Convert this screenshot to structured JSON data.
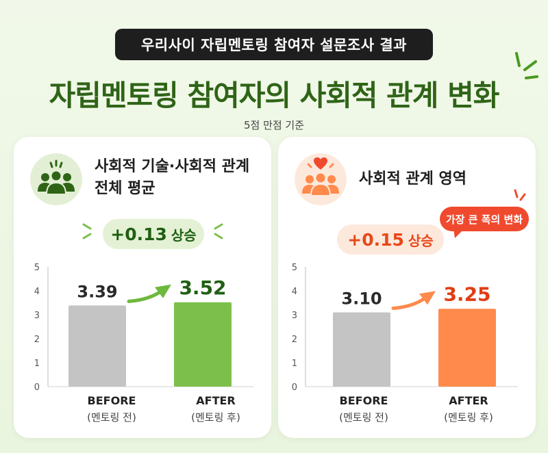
{
  "header": {
    "pill": "우리사이 자립멘토링 참여자 설문조사 결과",
    "title": "자립멘토링 참여자의 사회적 관계 변화",
    "subtitle": "5점 만점 기준"
  },
  "colors": {
    "title_green": "#2f6417",
    "before_gray": "#c4c4c4",
    "after_green": "#7cc04b",
    "after_orange": "#ff8a4c",
    "accent_red": "#f04a2e"
  },
  "chart_data": [
    {
      "type": "bar",
      "card_title_line1": "사회적 기술·사회적 관계",
      "card_title_line2": "전체 평균",
      "icon": "people-group-icon",
      "change_value": "+0.13",
      "change_suffix": "상승",
      "categories": [
        "BEFORE",
        "AFTER"
      ],
      "category_sub": [
        "(멘토링 전)",
        "(멘토링 후)"
      ],
      "values": [
        3.39,
        3.52
      ],
      "value_labels": [
        "3.39",
        "3.52"
      ],
      "ylim": [
        0,
        5
      ],
      "yticks": [
        "0",
        "1",
        "2",
        "3",
        "4",
        "5"
      ],
      "bar_colors": [
        "#c4c4c4",
        "#7cc04b"
      ]
    },
    {
      "type": "bar",
      "card_title_line1": "사회적 관계 영역",
      "icon": "people-heart-icon",
      "change_value": "+0.15",
      "change_suffix": "상승",
      "callout": "가장 큰 폭의 변화",
      "categories": [
        "BEFORE",
        "AFTER"
      ],
      "category_sub": [
        "(멘토링 전)",
        "(멘토링 후)"
      ],
      "values": [
        3.1,
        3.25
      ],
      "value_labels": [
        "3.10",
        "3.25"
      ],
      "ylim": [
        0,
        5
      ],
      "yticks": [
        "0",
        "1",
        "2",
        "3",
        "4",
        "5"
      ],
      "bar_colors": [
        "#c4c4c4",
        "#ff8a4c"
      ]
    }
  ]
}
